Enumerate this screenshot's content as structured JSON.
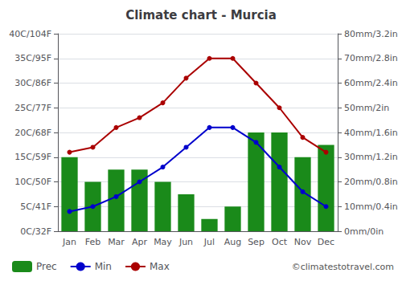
{
  "chart_data": {
    "type": "bar",
    "title": "Climate chart - Murcia",
    "categories": [
      "Jan",
      "Feb",
      "Mar",
      "Apr",
      "May",
      "Jun",
      "Jul",
      "Aug",
      "Sep",
      "Oct",
      "Nov",
      "Dec"
    ],
    "series": [
      {
        "name": "Prec",
        "type": "bar",
        "axis": "y2",
        "color": "#1a8a1a",
        "values": [
          30,
          20,
          25,
          25,
          20,
          15,
          5,
          10,
          40,
          40,
          30,
          35
        ]
      },
      {
        "name": "Min",
        "type": "line",
        "color": "#0000cc",
        "marker": "circle",
        "values": [
          4,
          5,
          7,
          10,
          13,
          17,
          21,
          21,
          18,
          13,
          8,
          5
        ]
      },
      {
        "name": "Max",
        "type": "line",
        "color": "#aa0000",
        "marker": "circle",
        "values": [
          16,
          17,
          21,
          23,
          26,
          31,
          35,
          35,
          30,
          25,
          19,
          16
        ]
      }
    ],
    "ylim": [
      0,
      40
    ],
    "yticks": [
      {
        "value": 0,
        "label": "0C/32F"
      },
      {
        "value": 5,
        "label": "5C/41F"
      },
      {
        "value": 10,
        "label": "10C/50F"
      },
      {
        "value": 15,
        "label": "15C/59F"
      },
      {
        "value": 20,
        "label": "20C/68F"
      },
      {
        "value": 25,
        "label": "25C/77F"
      },
      {
        "value": 30,
        "label": "30C/86F"
      },
      {
        "value": 35,
        "label": "35C/95F"
      },
      {
        "value": 40,
        "label": "40C/104F"
      }
    ],
    "y2lim": [
      0,
      80
    ],
    "y2ticks": [
      {
        "value": 0,
        "label": "0mm/0in"
      },
      {
        "value": 10,
        "label": "10mm/0.4in"
      },
      {
        "value": 20,
        "label": "20mm/0.8in"
      },
      {
        "value": 30,
        "label": "30mm/1.2in"
      },
      {
        "value": 40,
        "label": "40mm/1.6in"
      },
      {
        "value": 50,
        "label": "50mm/2in"
      },
      {
        "value": 60,
        "label": "60mm/2.4in"
      },
      {
        "value": 70,
        "label": "70mm/2.8in"
      },
      {
        "value": 80,
        "label": "80mm/3.2in"
      }
    ],
    "grid": true,
    "legend": "bottom",
    "annotations": [
      "©climatestotravel.com"
    ]
  }
}
